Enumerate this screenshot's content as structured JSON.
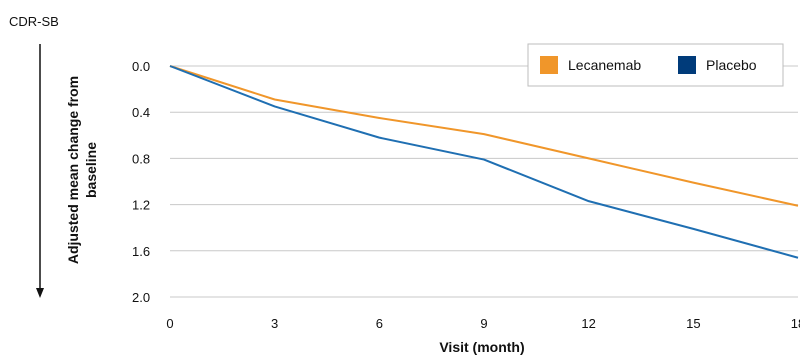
{
  "chart_data": {
    "type": "line",
    "corner_label": "CDR-SB",
    "xlabel": "Visit (month)",
    "ylabel_lines": [
      "Adjusted mean change from",
      "baseline"
    ],
    "x": [
      0,
      3,
      6,
      9,
      12,
      15,
      18
    ],
    "x_ticks": [
      "0",
      "3",
      "6",
      "9",
      "12",
      "15",
      "18"
    ],
    "y_ticks": [
      "0.0",
      "0.4",
      "0.8",
      "1.2",
      "1.6",
      "2.0"
    ],
    "y_tick_values": [
      0.0,
      0.4,
      0.8,
      1.2,
      1.6,
      2.0
    ],
    "ylim": [
      0.0,
      2.0
    ],
    "y_inverted": true,
    "grid": "horizontal",
    "legend_position": "top-right",
    "series": [
      {
        "name": "Lecanemab",
        "color": "#F0962A",
        "values": [
          0.0,
          0.29,
          0.45,
          0.59,
          0.8,
          1.01,
          1.21
        ]
      },
      {
        "name": "Placebo",
        "color": "#1F6FB2",
        "legend_color": "#003B7A",
        "values": [
          0.0,
          0.35,
          0.62,
          0.81,
          1.17,
          1.41,
          1.66
        ]
      }
    ]
  }
}
